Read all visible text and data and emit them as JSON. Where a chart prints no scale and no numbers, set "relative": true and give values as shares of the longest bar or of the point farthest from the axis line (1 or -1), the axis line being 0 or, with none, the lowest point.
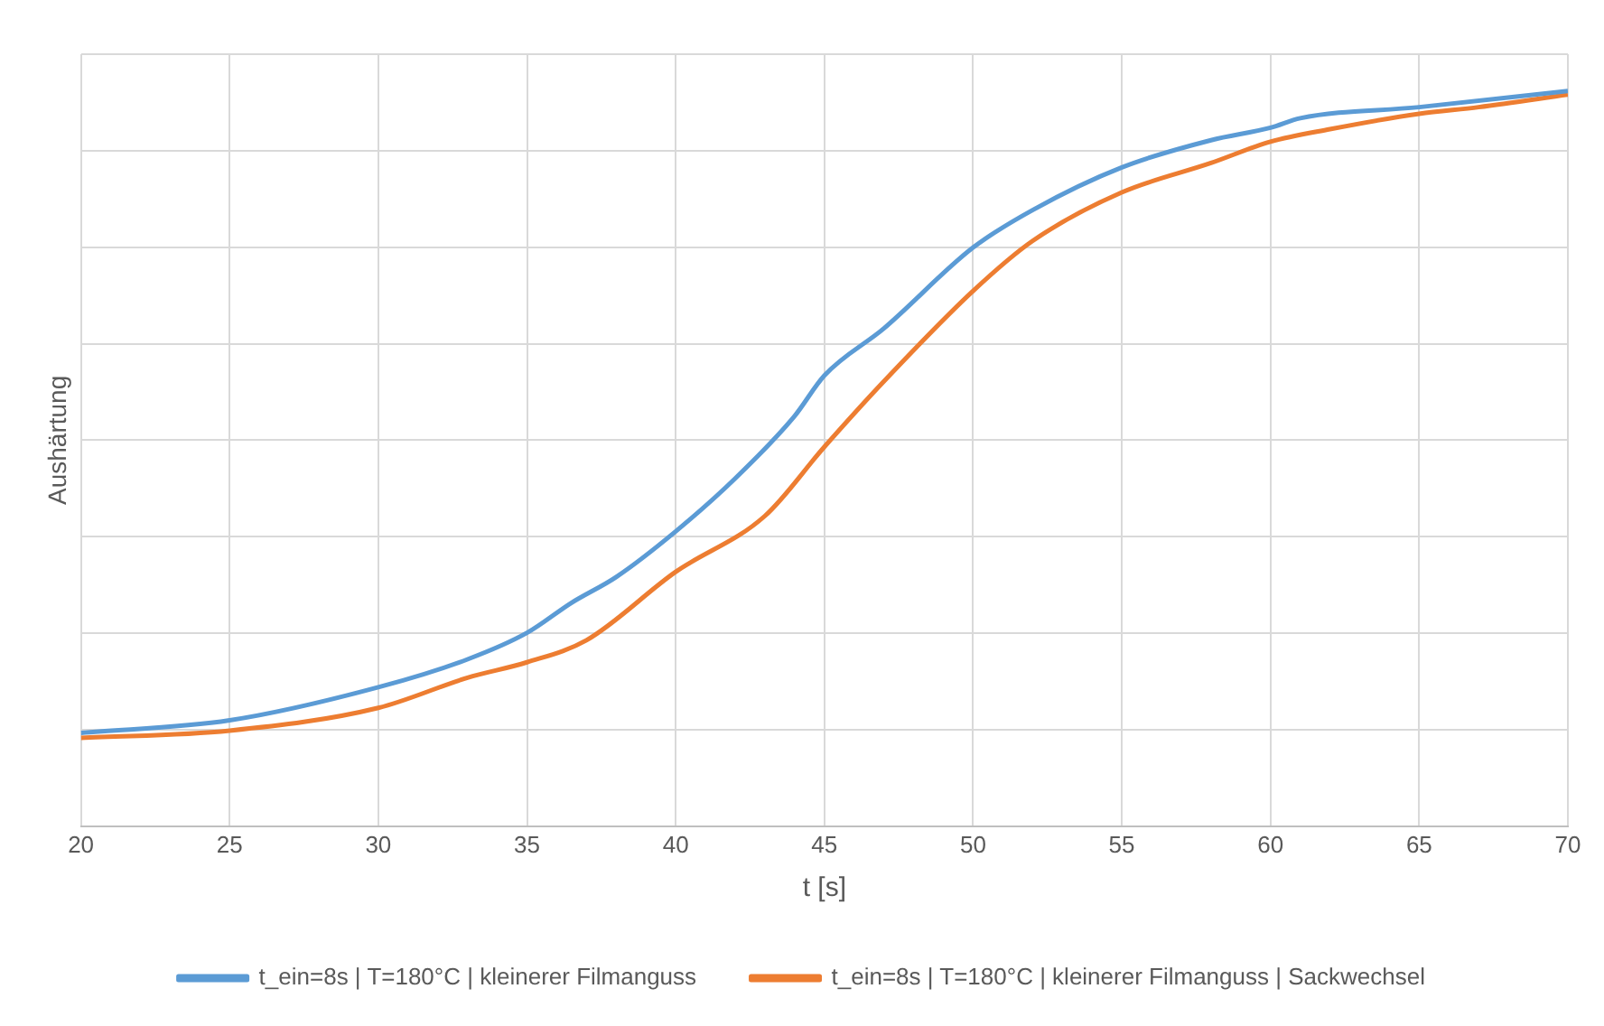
{
  "chart_data": {
    "type": "line",
    "xlabel": "t [s]",
    "ylabel": "Aushärtung",
    "relative": true,
    "grid": true,
    "legend": "bottom",
    "marker": "none",
    "line_style": "solid",
    "xlim": [
      20,
      70
    ],
    "xticks": [
      20,
      25,
      30,
      35,
      40,
      45,
      50,
      55,
      60,
      65,
      70
    ],
    "series": [
      {
        "name": "t_ein=8s | T=180°C | kleinerer Filmanguss",
        "color": "#5b9bd5",
        "x": [
          20,
          25,
          30,
          33,
          35,
          36.5,
          38,
          40,
          42,
          44,
          45,
          47,
          50,
          52,
          55,
          58,
          60,
          61,
          65,
          70
        ],
        "values": [
          0.127,
          0.144,
          0.189,
          0.227,
          0.263,
          0.304,
          0.339,
          0.401,
          0.473,
          0.558,
          0.613,
          0.677,
          0.787,
          0.838,
          0.896,
          0.933,
          0.95,
          0.963,
          0.978,
          1
        ]
      },
      {
        "name": "t_ein=8s | T=180°C | kleinerer Filmanguss | Sackwechsel",
        "color": "#ed7d31",
        "x": [
          20,
          25,
          30,
          33,
          35,
          37,
          40,
          43,
          45,
          47,
          50,
          52,
          55,
          58,
          60,
          62,
          65,
          67,
          70
        ],
        "values": [
          0.12,
          0.13,
          0.161,
          0.202,
          0.223,
          0.253,
          0.346,
          0.422,
          0.516,
          0.605,
          0.728,
          0.796,
          0.862,
          0.902,
          0.931,
          0.948,
          0.969,
          0.978,
          0.995
        ]
      }
    ]
  }
}
